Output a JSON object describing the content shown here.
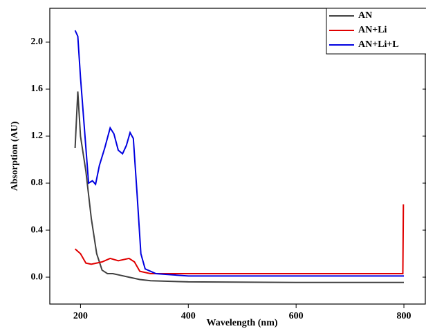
{
  "chart_data": {
    "type": "line",
    "xlabel": "Wavelength (nm)",
    "ylabel": "Absorption (AU)",
    "xlim": [
      143,
      841
    ],
    "ylim": [
      -0.229,
      2.288
    ],
    "xticks": [
      200,
      400,
      600,
      800
    ],
    "yticks": [
      {
        "value": 0,
        "label": "0.0"
      },
      0.4,
      0.8,
      1.2,
      1.6,
      {
        "value": 2,
        "label": "2.0"
      }
    ],
    "legend": "top-right",
    "series": [
      {
        "name": "AN",
        "color": "#404040",
        "x": [
          190,
          195,
          200,
          210,
          220,
          230,
          240,
          250,
          260,
          270,
          290,
          310,
          330,
          400,
          600,
          800
        ],
        "values": [
          1.1,
          1.58,
          1.2,
          0.9,
          0.5,
          0.2,
          0.06,
          0.03,
          0.03,
          0.02,
          0.0,
          -0.02,
          -0.03,
          -0.04,
          -0.045,
          -0.045
        ]
      },
      {
        "name": "AN+Li",
        "color": "#e00000",
        "x": [
          190,
          200,
          210,
          220,
          240,
          255,
          270,
          290,
          300,
          310,
          330,
          400,
          600,
          798,
          799
        ],
        "values": [
          0.24,
          0.2,
          0.12,
          0.11,
          0.13,
          0.16,
          0.14,
          0.16,
          0.13,
          0.05,
          0.03,
          0.03,
          0.03,
          0.03,
          0.62
        ]
      },
      {
        "name": "AN+Li+L",
        "color": "#0000e0",
        "x": [
          190,
          195,
          200,
          210,
          215,
          222,
          228,
          235,
          245,
          255,
          262,
          270,
          278,
          285,
          292,
          298,
          305,
          312,
          320,
          340,
          400,
          600,
          800
        ],
        "values": [
          2.1,
          2.05,
          1.7,
          1.1,
          0.8,
          0.82,
          0.79,
          0.95,
          1.1,
          1.27,
          1.22,
          1.08,
          1.05,
          1.12,
          1.23,
          1.18,
          0.7,
          0.2,
          0.07,
          0.03,
          0.01,
          0.01,
          0.01
        ]
      }
    ]
  }
}
